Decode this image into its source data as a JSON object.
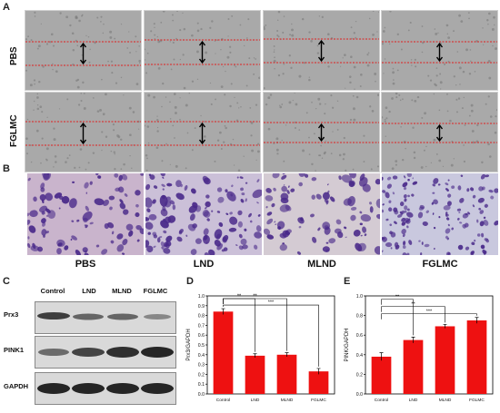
{
  "panels": {
    "a": "A",
    "b": "B",
    "c": "C",
    "d": "D",
    "e": "E"
  },
  "scratch": {
    "row_labels": [
      "PBS",
      "FGLMC"
    ]
  },
  "transwell": {
    "labels": [
      "PBS",
      "LND",
      "MLND",
      "FGLMC"
    ],
    "stain_color": "#4a2a8a"
  },
  "blot": {
    "columns": [
      "Control",
      "LND",
      "MLND",
      "FGLMC"
    ],
    "rows": [
      "Prx3",
      "PINK1",
      "GAPDH"
    ]
  },
  "chart_data": [
    {
      "type": "bar",
      "panel": "D",
      "categories": [
        "Control",
        "LND",
        "MLND",
        "FGLMC"
      ],
      "values": [
        0.84,
        0.39,
        0.4,
        0.23
      ],
      "errors": [
        0.03,
        0.02,
        0.02,
        0.03
      ],
      "ylabel": "Prx3/GAPDH",
      "ylim": [
        0.0,
        1.0
      ],
      "yticks": [
        "0.0",
        "0.1",
        "0.2",
        "0.3",
        "0.4",
        "0.5",
        "0.6",
        "0.7",
        "0.8",
        "0.9",
        "1.0"
      ],
      "significance": [
        "**",
        "**",
        "***"
      ],
      "bar_color": "#ee1111"
    },
    {
      "type": "bar",
      "panel": "E",
      "categories": [
        "Control",
        "LND",
        "MLND",
        "FGLMC"
      ],
      "values": [
        0.38,
        0.55,
        0.69,
        0.75
      ],
      "errors": [
        0.04,
        0.03,
        0.02,
        0.03
      ],
      "ylabel": "PINK/GAPDH",
      "ylim": [
        0.0,
        1.0
      ],
      "yticks": [
        "0.0",
        "0.2",
        "0.4",
        "0.6",
        "0.8",
        "1.0"
      ],
      "significance": [
        "**",
        "**",
        "***"
      ],
      "bar_color": "#ee1111"
    }
  ]
}
